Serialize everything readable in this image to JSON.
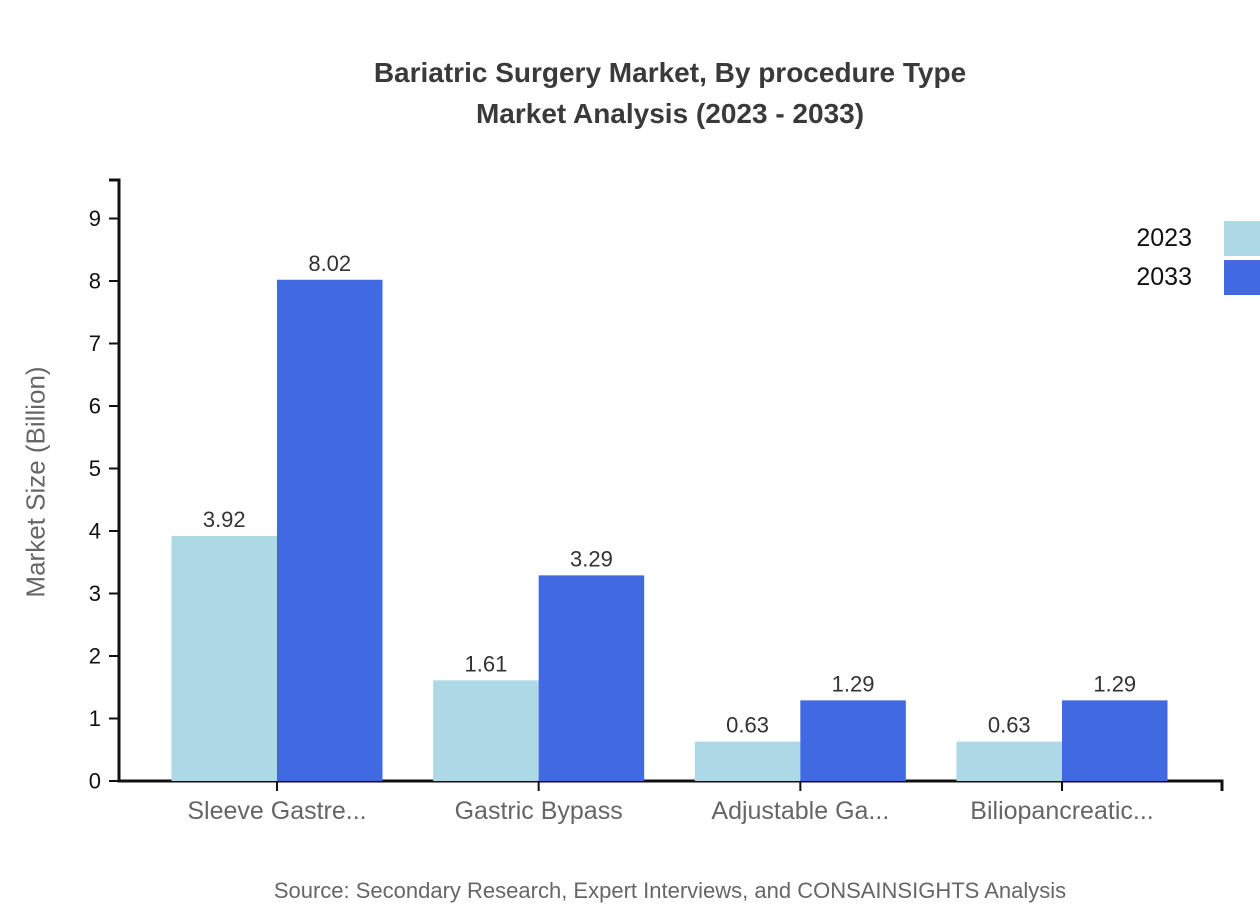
{
  "chart": {
    "title_line1": "Bariatric Surgery Market, By procedure Type",
    "title_line2": "Market Analysis (2023 - 2033)",
    "source": "Source: Secondary Research, Expert Interviews, and CONSAINSIGHTS Analysis"
  },
  "chart_data": {
    "type": "bar",
    "categories": [
      "Sleeve Gastre...",
      "Gastric Bypass",
      "Adjustable Ga...",
      "Biliopancreatic..."
    ],
    "series": [
      {
        "name": "2023",
        "color": "#ADD8E6",
        "values": [
          3.92,
          1.61,
          0.63,
          0.63
        ]
      },
      {
        "name": "2033",
        "color": "#4169E1",
        "values": [
          8.02,
          3.29,
          1.29,
          1.29
        ]
      }
    ],
    "value_labels": [
      "3.92",
      "8.02",
      "1.61",
      "3.29",
      "0.63",
      "1.29",
      "0.63",
      "1.29"
    ],
    "xlabel": "",
    "ylabel": "Market Size (Billion)",
    "ylim": [
      0,
      9
    ],
    "ytick_step": 1,
    "yticks": [
      0,
      1,
      2,
      3,
      4,
      5,
      6,
      7,
      8,
      9
    ],
    "grid": false,
    "legend_position": "top-right",
    "colors": {
      "axis": "#111111",
      "tick_label": "#111111",
      "category_label": "#666666",
      "value_label": "#333333",
      "title": "#3a3a3a",
      "muted_text": "#666666"
    }
  }
}
